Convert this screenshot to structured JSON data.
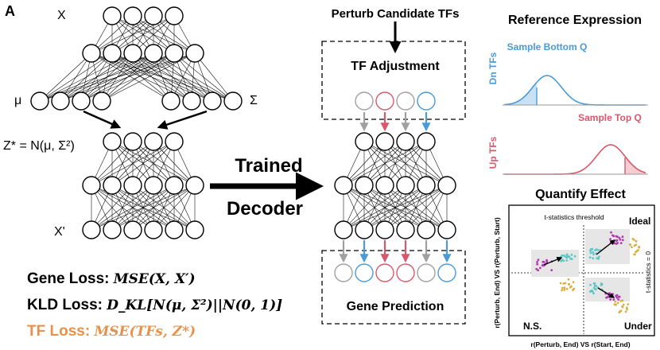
{
  "panel_label": "A",
  "vae": {
    "input_label": "X",
    "mu_label": "μ",
    "sigma_label": "Σ",
    "latent_label": "Z* = N(μ, Σ²)",
    "output_label": "X'"
  },
  "arrow_text": {
    "line1": "Trained",
    "line2": "Decoder"
  },
  "perturb": {
    "title": "Perturb Candidate TFs",
    "adjust_box_label": "TF Adjustment",
    "prediction_box_label": "Gene Prediction"
  },
  "losses": {
    "gene_label": "Gene Loss:",
    "gene_formula": "MSE(X, X′)",
    "kld_label": "KLD Loss:",
    "kld_formula": "D_KL[N(μ, Σ²)||N(0, 1)]",
    "tf_label": "TF Loss:",
    "tf_formula": "MSE(TFs, Z*)"
  },
  "reference": {
    "title": "Reference Expression",
    "dn_axis": "Dn TFs",
    "dn_sample": "Sample Bottom Q",
    "up_axis": "Up TFs",
    "up_sample": "Sample Top Q"
  },
  "quantify": {
    "title": "Quantify Effect",
    "y_axis": "r(Perturb, End) VS r(Perturb, Start)",
    "x_axis": "r(Perturb, End) VS r(Start, End)",
    "threshold_label": "t-statistics threshold",
    "zero_label": "t-statistics = 0",
    "ideal": "Ideal",
    "ns": "N.S.",
    "under": "Under"
  },
  "colors": {
    "blue": "#4a9ad9",
    "red": "#d9576c",
    "gray": "#a0a0a0",
    "orange": "#e8914a",
    "magenta": "#b03ab0",
    "cyan": "#5cc8c8",
    "yellow": "#d8b040"
  }
}
